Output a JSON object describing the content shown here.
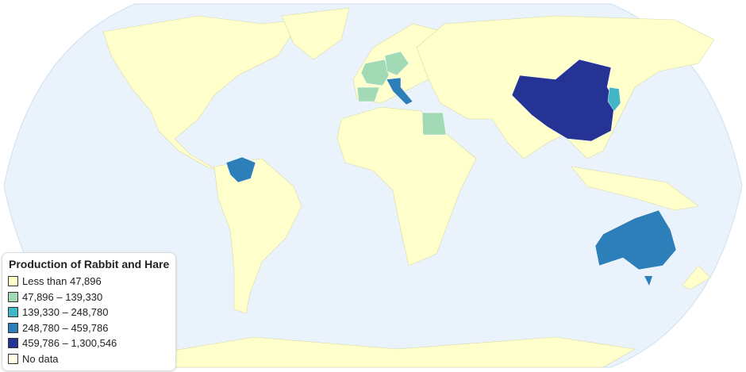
{
  "colors": {
    "ocean": "#eaf3fb",
    "bin_1": "#ffffcc",
    "bin_2": "#a1dab4",
    "bin_3": "#41b6c4",
    "bin_4": "#2c7fb8",
    "bin_5": "#253494",
    "no_data": "#fffde8"
  },
  "legend": {
    "title": "Production of Rabbit and Hare",
    "items": [
      {
        "label": "Less than 47,896",
        "color": "#ffffcc"
      },
      {
        "label": "47,896 – 139,330",
        "color": "#a1dab4"
      },
      {
        "label": "139,330 – 248,780",
        "color": "#41b6c4"
      },
      {
        "label": "248,780 – 459,786",
        "color": "#2c7fb8"
      },
      {
        "label": "459,786 – 1,300,546",
        "color": "#253494"
      },
      {
        "label": "No data",
        "color": "#fffde8"
      }
    ]
  },
  "countries": {
    "China": "459,786 – 1,300,546",
    "Australia": "248,780 – 459,786",
    "Venezuela": "248,780 – 459,786",
    "Italy": "248,780 – 459,786",
    "North Korea": "139,330 – 248,780",
    "South Korea": "139,330 – 248,780",
    "France": "47,896 – 139,330",
    "Spain": "47,896 – 139,330",
    "Germany": "47,896 – 139,330",
    "Czech Republic": "47,896 – 139,330",
    "Egypt": "47,896 – 139,330"
  }
}
